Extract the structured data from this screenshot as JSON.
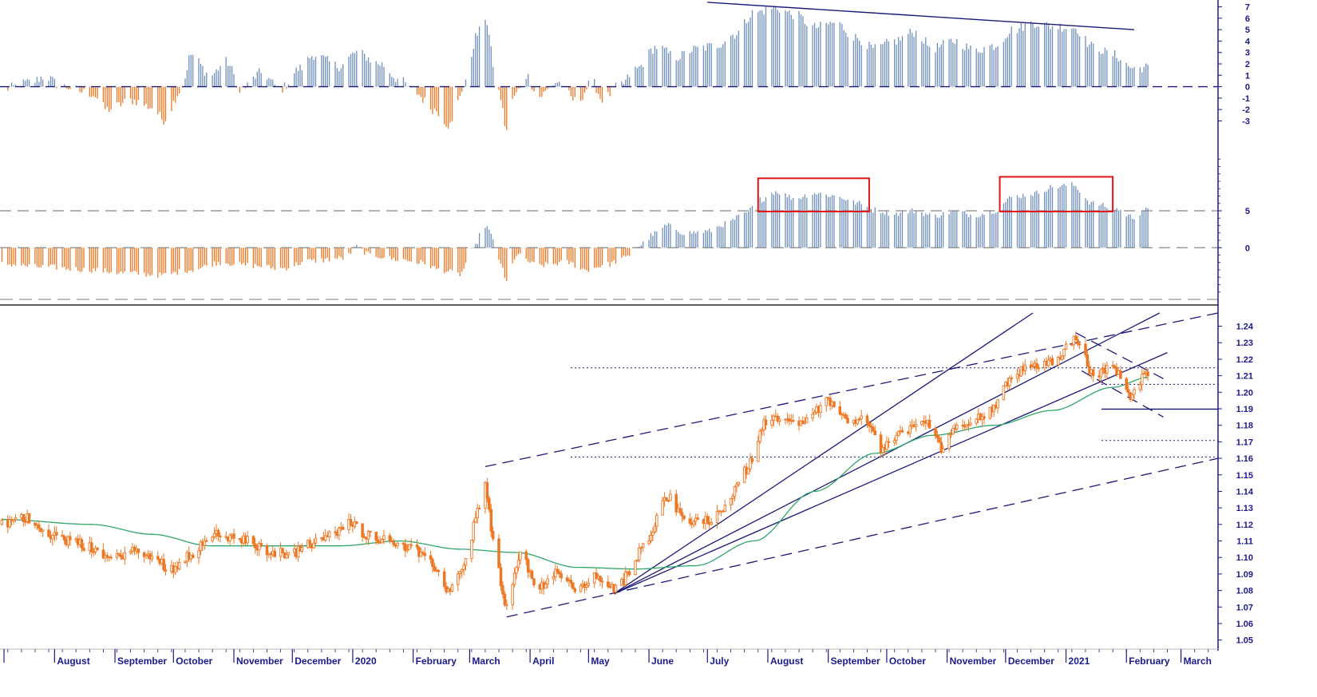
{
  "colors": {
    "positive": "#6f8fbd",
    "negative": "#ee7722",
    "price": "#ee7722",
    "moving_average": "#2fa66a",
    "trendline": "#1a1a7a",
    "highlight_box": "#e01515",
    "axis": "#1a1a8c"
  },
  "chart_data": [
    {
      "type": "bar",
      "panel": "top-oscillator",
      "y_tick_labels": [
        "7",
        "6",
        "5",
        "4",
        "3",
        "2",
        "1",
        "0",
        "-1",
        "-2",
        "-3"
      ],
      "ylim": [
        -5,
        7.6
      ],
      "zero_line": "dashed",
      "trendline": {
        "style": "solid",
        "from": {
          "x": "2020-07-01",
          "y": 7.4
        },
        "to": {
          "x": "2021-02-05",
          "y": 5.0
        }
      },
      "series_keypoints": [
        {
          "x": "2019-07-06",
          "y": -0.2
        },
        {
          "x": "2019-07-20",
          "y": 0.4
        },
        {
          "x": "2019-07-27",
          "y": 0.9
        },
        {
          "x": "2019-08-05",
          "y": 0.0
        },
        {
          "x": "2019-08-20",
          "y": -0.6
        },
        {
          "x": "2019-08-28",
          "y": -2.0
        },
        {
          "x": "2019-09-10",
          "y": -1.2
        },
        {
          "x": "2019-09-20",
          "y": -1.8
        },
        {
          "x": "2019-09-26",
          "y": -2.9
        },
        {
          "x": "2019-10-05",
          "y": -0.3
        },
        {
          "x": "2019-10-10",
          "y": 2.8
        },
        {
          "x": "2019-10-20",
          "y": 1.0
        },
        {
          "x": "2019-10-28",
          "y": 2.2
        },
        {
          "x": "2019-11-05",
          "y": -0.2
        },
        {
          "x": "2019-11-15",
          "y": 1.2
        },
        {
          "x": "2019-11-25",
          "y": -0.2
        },
        {
          "x": "2019-12-05",
          "y": 1.6
        },
        {
          "x": "2019-12-12",
          "y": 2.8
        },
        {
          "x": "2019-12-25",
          "y": 1.8
        },
        {
          "x": "2020-01-03",
          "y": 3.0
        },
        {
          "x": "2020-01-15",
          "y": 2.0
        },
        {
          "x": "2020-01-25",
          "y": 0.6
        },
        {
          "x": "2020-02-01",
          "y": -0.4
        },
        {
          "x": "2020-02-12",
          "y": -2.0
        },
        {
          "x": "2020-02-20",
          "y": -3.4
        },
        {
          "x": "2020-02-27",
          "y": 0.0
        },
        {
          "x": "2020-03-05",
          "y": 4.6
        },
        {
          "x": "2020-03-09",
          "y": 6.1
        },
        {
          "x": "2020-03-14",
          "y": 1.5
        },
        {
          "x": "2020-03-16",
          "y": -0.5
        },
        {
          "x": "2020-03-20",
          "y": -3.8
        },
        {
          "x": "2020-03-24",
          "y": -0.8
        },
        {
          "x": "2020-03-30",
          "y": 1.0
        },
        {
          "x": "2020-04-05",
          "y": -0.9
        },
        {
          "x": "2020-04-15",
          "y": 0.4
        },
        {
          "x": "2020-04-25",
          "y": -1.3
        },
        {
          "x": "2020-05-03",
          "y": 0.4
        },
        {
          "x": "2020-05-08",
          "y": -1.1
        },
        {
          "x": "2020-05-18",
          "y": 0.2
        },
        {
          "x": "2020-05-25",
          "y": 1.5
        },
        {
          "x": "2020-06-05",
          "y": 3.5
        },
        {
          "x": "2020-06-15",
          "y": 2.6
        },
        {
          "x": "2020-06-25",
          "y": 3.3
        },
        {
          "x": "2020-07-05",
          "y": 3.6
        },
        {
          "x": "2020-07-15",
          "y": 4.6
        },
        {
          "x": "2020-07-25",
          "y": 6.5
        },
        {
          "x": "2020-08-05",
          "y": 6.9
        },
        {
          "x": "2020-08-15",
          "y": 6.3
        },
        {
          "x": "2020-08-25",
          "y": 5.2
        },
        {
          "x": "2020-09-05",
          "y": 5.6
        },
        {
          "x": "2020-09-15",
          "y": 4.3
        },
        {
          "x": "2020-09-25",
          "y": 3.3
        },
        {
          "x": "2020-10-05",
          "y": 4.0
        },
        {
          "x": "2020-10-15",
          "y": 4.8
        },
        {
          "x": "2020-10-25",
          "y": 3.4
        },
        {
          "x": "2020-11-05",
          "y": 4.0
        },
        {
          "x": "2020-11-15",
          "y": 3.2
        },
        {
          "x": "2020-11-25",
          "y": 3.6
        },
        {
          "x": "2020-12-05",
          "y": 5.0
        },
        {
          "x": "2020-12-15",
          "y": 5.6
        },
        {
          "x": "2020-12-25",
          "y": 5.3
        },
        {
          "x": "2021-01-05",
          "y": 5.2
        },
        {
          "x": "2021-01-15",
          "y": 3.5
        },
        {
          "x": "2021-01-25",
          "y": 2.8
        },
        {
          "x": "2021-02-05",
          "y": 1.6
        },
        {
          "x": "2021-02-10",
          "y": 1.7
        }
      ]
    },
    {
      "type": "bar",
      "panel": "middle-oscillator",
      "y_tick_labels": [
        "5",
        "0"
      ],
      "ylim": [
        -7,
        13
      ],
      "reference_lines": [
        5,
        0
      ],
      "reference_line_style": "dashed",
      "highlight_boxes": [
        {
          "from": "2020-07-27",
          "to": "2020-09-22",
          "ymin": 4.9,
          "ymax": 9.4
        },
        {
          "from": "2020-11-28",
          "to": "2021-01-25",
          "ymin": 4.9,
          "ymax": 9.6
        }
      ],
      "series_keypoints": [
        {
          "x": "2019-07-06",
          "y": -2.2
        },
        {
          "x": "2019-07-25",
          "y": -2.6
        },
        {
          "x": "2019-08-20",
          "y": -3.0
        },
        {
          "x": "2019-09-05",
          "y": -3.4
        },
        {
          "x": "2019-09-25",
          "y": -3.7
        },
        {
          "x": "2019-10-10",
          "y": -3.0
        },
        {
          "x": "2019-10-25",
          "y": -2.0
        },
        {
          "x": "2019-11-10",
          "y": -2.4
        },
        {
          "x": "2019-11-25",
          "y": -2.8
        },
        {
          "x": "2019-12-10",
          "y": -1.8
        },
        {
          "x": "2019-12-28",
          "y": -1.4
        },
        {
          "x": "2020-01-03",
          "y": 0.1
        },
        {
          "x": "2020-01-10",
          "y": -1.0
        },
        {
          "x": "2020-01-25",
          "y": -1.6
        },
        {
          "x": "2020-02-05",
          "y": -2.0
        },
        {
          "x": "2020-02-15",
          "y": -3.0
        },
        {
          "x": "2020-02-25",
          "y": -3.6
        },
        {
          "x": "2020-03-02",
          "y": -0.5
        },
        {
          "x": "2020-03-09",
          "y": 3.0
        },
        {
          "x": "2020-03-14",
          "y": 0.8
        },
        {
          "x": "2020-03-16",
          "y": -1.5
        },
        {
          "x": "2020-03-20",
          "y": -4.7
        },
        {
          "x": "2020-03-25",
          "y": -1.0
        },
        {
          "x": "2020-04-05",
          "y": -2.4
        },
        {
          "x": "2020-04-20",
          "y": -2.0
        },
        {
          "x": "2020-04-30",
          "y": -3.0
        },
        {
          "x": "2020-05-10",
          "y": -2.3
        },
        {
          "x": "2020-05-20",
          "y": -1.4
        },
        {
          "x": "2020-05-26",
          "y": 0.2
        },
        {
          "x": "2020-06-05",
          "y": 2.0
        },
        {
          "x": "2020-06-10",
          "y": 3.0
        },
        {
          "x": "2020-06-20",
          "y": 2.0
        },
        {
          "x": "2020-07-01",
          "y": 2.2
        },
        {
          "x": "2020-07-10",
          "y": 3.2
        },
        {
          "x": "2020-07-20",
          "y": 4.5
        },
        {
          "x": "2020-07-28",
          "y": 6.5
        },
        {
          "x": "2020-08-05",
          "y": 7.6
        },
        {
          "x": "2020-08-15",
          "y": 6.7
        },
        {
          "x": "2020-08-25",
          "y": 7.4
        },
        {
          "x": "2020-09-05",
          "y": 7.0
        },
        {
          "x": "2020-09-15",
          "y": 6.1
        },
        {
          "x": "2020-09-25",
          "y": 5.1
        },
        {
          "x": "2020-10-05",
          "y": 4.6
        },
        {
          "x": "2020-10-15",
          "y": 5.0
        },
        {
          "x": "2020-10-25",
          "y": 4.3
        },
        {
          "x": "2020-11-05",
          "y": 4.9
        },
        {
          "x": "2020-11-15",
          "y": 4.4
        },
        {
          "x": "2020-11-25",
          "y": 5.0
        },
        {
          "x": "2020-12-05",
          "y": 6.9
        },
        {
          "x": "2020-12-15",
          "y": 7.3
        },
        {
          "x": "2020-12-25",
          "y": 8.2
        },
        {
          "x": "2021-01-04",
          "y": 8.5
        },
        {
          "x": "2021-01-15",
          "y": 6.0
        },
        {
          "x": "2021-01-25",
          "y": 5.4
        },
        {
          "x": "2021-02-05",
          "y": 4.1
        },
        {
          "x": "2021-02-10",
          "y": 5.1
        }
      ]
    },
    {
      "type": "candlestick",
      "panel": "price",
      "y_tick_labels": [
        "1.24",
        "1.23",
        "1.22",
        "1.21",
        "1.20",
        "1.19",
        "1.18",
        "1.17",
        "1.16",
        "1.15",
        "1.14",
        "1.13",
        "1.12",
        "1.11",
        "1.10",
        "1.09",
        "1.08",
        "1.07",
        "1.06",
        "1.05"
      ],
      "ylim": [
        1.045,
        1.248
      ],
      "x_month_labels": [
        "August",
        "September",
        "October",
        "November",
        "December",
        "2020",
        "February",
        "March",
        "April",
        "May",
        "June",
        "July",
        "August",
        "September",
        "October",
        "November",
        "December",
        "2021",
        "February",
        "March"
      ],
      "xlim": [
        "2019-07-04",
        "2021-03-20"
      ],
      "close_keypoints": [
        {
          "x": "2019-07-05",
          "y": 1.12
        },
        {
          "x": "2019-07-18",
          "y": 1.124
        },
        {
          "x": "2019-07-30",
          "y": 1.114
        },
        {
          "x": "2019-08-08",
          "y": 1.11
        },
        {
          "x": "2019-08-20",
          "y": 1.106
        },
        {
          "x": "2019-08-30",
          "y": 1.099
        },
        {
          "x": "2019-09-10",
          "y": 1.104
        },
        {
          "x": "2019-09-20",
          "y": 1.1
        },
        {
          "x": "2019-09-30",
          "y": 1.093
        },
        {
          "x": "2019-10-10",
          "y": 1.102
        },
        {
          "x": "2019-10-20",
          "y": 1.114
        },
        {
          "x": "2019-10-30",
          "y": 1.112
        },
        {
          "x": "2019-11-08",
          "y": 1.11
        },
        {
          "x": "2019-11-18",
          "y": 1.104
        },
        {
          "x": "2019-11-30",
          "y": 1.102
        },
        {
          "x": "2019-12-10",
          "y": 1.108
        },
        {
          "x": "2019-12-20",
          "y": 1.113
        },
        {
          "x": "2019-12-31",
          "y": 1.121
        },
        {
          "x": "2020-01-08",
          "y": 1.114
        },
        {
          "x": "2020-01-20",
          "y": 1.11
        },
        {
          "x": "2020-01-31",
          "y": 1.106
        },
        {
          "x": "2020-02-10",
          "y": 1.096
        },
        {
          "x": "2020-02-20",
          "y": 1.08
        },
        {
          "x": "2020-02-28",
          "y": 1.098
        },
        {
          "x": "2020-03-05",
          "y": 1.128
        },
        {
          "x": "2020-03-09",
          "y": 1.144
        },
        {
          "x": "2020-03-13",
          "y": 1.11
        },
        {
          "x": "2020-03-20",
          "y": 1.069
        },
        {
          "x": "2020-03-27",
          "y": 1.102
        },
        {
          "x": "2020-04-05",
          "y": 1.082
        },
        {
          "x": "2020-04-15",
          "y": 1.09
        },
        {
          "x": "2020-04-25",
          "y": 1.081
        },
        {
          "x": "2020-05-05",
          "y": 1.088
        },
        {
          "x": "2020-05-15",
          "y": 1.081
        },
        {
          "x": "2020-05-22",
          "y": 1.09
        },
        {
          "x": "2020-05-30",
          "y": 1.11
        },
        {
          "x": "2020-06-10",
          "y": 1.137
        },
        {
          "x": "2020-06-20",
          "y": 1.122
        },
        {
          "x": "2020-06-30",
          "y": 1.122
        },
        {
          "x": "2020-07-10",
          "y": 1.13
        },
        {
          "x": "2020-07-20",
          "y": 1.152
        },
        {
          "x": "2020-07-31",
          "y": 1.182
        },
        {
          "x": "2020-08-10",
          "y": 1.185
        },
        {
          "x": "2020-08-20",
          "y": 1.182
        },
        {
          "x": "2020-09-01",
          "y": 1.195
        },
        {
          "x": "2020-09-10",
          "y": 1.184
        },
        {
          "x": "2020-09-20",
          "y": 1.184
        },
        {
          "x": "2020-09-28",
          "y": 1.166
        },
        {
          "x": "2020-10-10",
          "y": 1.176
        },
        {
          "x": "2020-10-20",
          "y": 1.183
        },
        {
          "x": "2020-10-30",
          "y": 1.166
        },
        {
          "x": "2020-11-05",
          "y": 1.18
        },
        {
          "x": "2020-11-15",
          "y": 1.183
        },
        {
          "x": "2020-11-25",
          "y": 1.191
        },
        {
          "x": "2020-12-05",
          "y": 1.211
        },
        {
          "x": "2020-12-15",
          "y": 1.216
        },
        {
          "x": "2020-12-25",
          "y": 1.219
        },
        {
          "x": "2021-01-06",
          "y": 1.232
        },
        {
          "x": "2021-01-15",
          "y": 1.211
        },
        {
          "x": "2021-01-25",
          "y": 1.215
        },
        {
          "x": "2021-02-04",
          "y": 1.198
        },
        {
          "x": "2021-02-10",
          "y": 1.211
        },
        {
          "x": "2021-02-12",
          "y": 1.212
        }
      ],
      "moving_average_keypoints": [
        {
          "x": "2019-07-05",
          "y": 1.123
        },
        {
          "x": "2019-08-20",
          "y": 1.12
        },
        {
          "x": "2019-09-20",
          "y": 1.114
        },
        {
          "x": "2019-10-20",
          "y": 1.107
        },
        {
          "x": "2019-11-20",
          "y": 1.107
        },
        {
          "x": "2019-12-25",
          "y": 1.107
        },
        {
          "x": "2020-01-25",
          "y": 1.11
        },
        {
          "x": "2020-02-25",
          "y": 1.105
        },
        {
          "x": "2020-03-25",
          "y": 1.103
        },
        {
          "x": "2020-04-25",
          "y": 1.094
        },
        {
          "x": "2020-05-25",
          "y": 1.093
        },
        {
          "x": "2020-06-25",
          "y": 1.095
        },
        {
          "x": "2020-07-25",
          "y": 1.11
        },
        {
          "x": "2020-08-25",
          "y": 1.14
        },
        {
          "x": "2020-09-25",
          "y": 1.163
        },
        {
          "x": "2020-10-25",
          "y": 1.174
        },
        {
          "x": "2020-11-25",
          "y": 1.18
        },
        {
          "x": "2020-12-25",
          "y": 1.189
        },
        {
          "x": "2021-01-25",
          "y": 1.203
        },
        {
          "x": "2021-02-12",
          "y": 1.209
        }
      ],
      "horizontal_levels": [
        {
          "value": 1.2148,
          "style": "dotted"
        },
        {
          "value": 1.2048,
          "style": "dotted"
        },
        {
          "value": 1.1898,
          "style": "solid"
        },
        {
          "value": 1.1708,
          "style": "dotted"
        },
        {
          "value": 1.1608,
          "style": "dotted"
        }
      ],
      "trendlines": [
        {
          "style": "dashed",
          "from": {
            "x": "2020-03-09",
            "y": 1.155
          },
          "to": {
            "x": "2021-03-20",
            "y": 1.248
          }
        },
        {
          "style": "dashed",
          "from": {
            "x": "2020-03-20",
            "y": 1.064
          },
          "to": {
            "x": "2021-03-20",
            "y": 1.16
          }
        },
        {
          "style": "solid",
          "from": {
            "x": "2020-05-14",
            "y": 1.078
          },
          "to": {
            "x": "2020-12-15",
            "y": 1.248
          }
        },
        {
          "style": "solid",
          "from": {
            "x": "2020-05-14",
            "y": 1.078
          },
          "to": {
            "x": "2021-02-18",
            "y": 1.248
          }
        },
        {
          "style": "solid",
          "from": {
            "x": "2020-05-14",
            "y": 1.078
          },
          "to": {
            "x": "2021-02-22",
            "y": 1.224
          }
        },
        {
          "style": "dashed",
          "from": {
            "x": "2021-01-06",
            "y": 1.236
          },
          "to": {
            "x": "2021-02-22",
            "y": 1.207
          }
        },
        {
          "style": "dashed",
          "from": {
            "x": "2021-01-09",
            "y": 1.213
          },
          "to": {
            "x": "2021-02-20",
            "y": 1.185
          }
        }
      ]
    }
  ]
}
